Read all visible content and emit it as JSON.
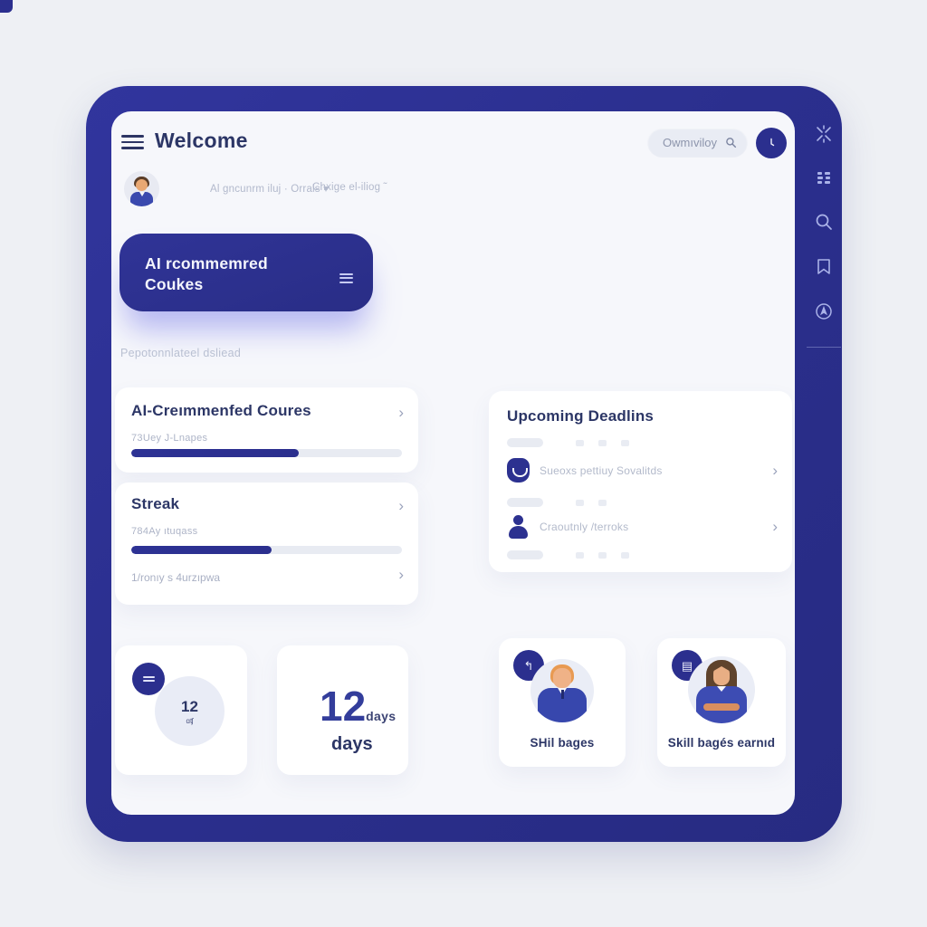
{
  "header": {
    "title": "Welcome",
    "search_value": "Owmıviloy"
  },
  "profile": {
    "dropdown1": "Al gncunrm iluj · Orrals ▾",
    "dropdown2": "Chxige el-iliog ˜"
  },
  "banner": {
    "line1": "AI rcommemred",
    "line2": "Coukes"
  },
  "section": {
    "subtitle": "Pepotonnlateel dsliead"
  },
  "cards": {
    "courses": {
      "title": "AI-Creımmenfed Coures",
      "subtitle": "73Uey J-Lnapes",
      "progress": 62,
      "chevron": "›"
    },
    "streak": {
      "title": "Streak",
      "subtitle": "784Ay ıtuqass",
      "progress": 52,
      "link": "1/ronıy s 4urzıpwa",
      "chevron": "›"
    },
    "deadlines": {
      "title": "Upcoming Deadlins",
      "items": [
        {
          "label": "Sueoxs pettiuy Sovalitds",
          "icon": "bag-icon",
          "chevron": "›"
        },
        {
          "label": "Craoutnly /terroks",
          "icon": "person-icon",
          "chevron": "›"
        }
      ]
    }
  },
  "stats": {
    "circle_card": {
      "value": "12",
      "unit": "ɑʧ",
      "badge_icon": "menu-icon"
    },
    "days_card": {
      "value": "12",
      "unit_small": "days",
      "label": "days"
    },
    "badge_card_1": {
      "label": "SHil bages",
      "badge_icon": "return-arrow-icon",
      "badge_glyph": "↰"
    },
    "badge_card_2": {
      "label": "Skill bagés earnıd",
      "badge_icon": "calendar-icon",
      "badge_glyph": "▤"
    }
  },
  "sidebar": {
    "icons": [
      "sparkle-icon",
      "grid-icon",
      "search-icon",
      "bookmark-icon",
      "target-icon"
    ]
  },
  "colors": {
    "frame_navy": "#2b2f8e",
    "panel_bg": "#f6f7fb",
    "page_bg": "#eef0f4",
    "accent": "#2c3190",
    "title_text": "#2c3666",
    "muted_text": "#b2b9cc",
    "skeleton": "#e8ebf2",
    "banner_glow": "rgba(130,132,233,0.55)"
  }
}
